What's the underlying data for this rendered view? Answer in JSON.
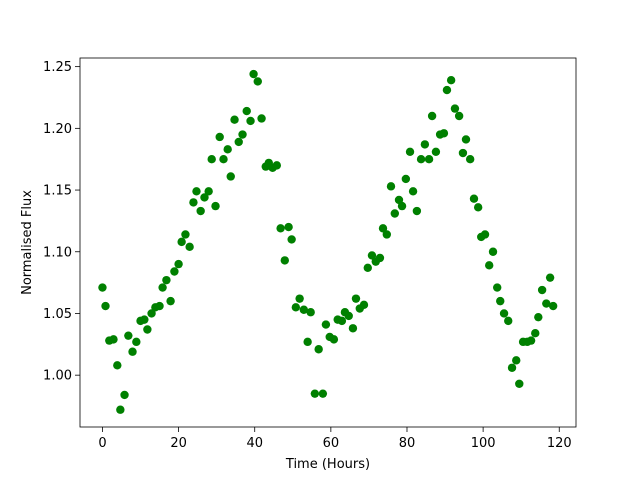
{
  "chart_data": {
    "type": "scatter",
    "x_label": "Time (Hours)",
    "y_label": "Normalised Flux",
    "color": "#008000",
    "xlim": [
      -5.9,
      124.4
    ],
    "ylim": [
      0.958,
      1.257
    ],
    "xticks": [
      0,
      20,
      40,
      60,
      80,
      100,
      120
    ],
    "yticks": [
      {
        "value": 1.0,
        "label": "1.00"
      },
      {
        "value": 1.05,
        "label": "1.05"
      },
      {
        "value": 1.1,
        "label": "1.10"
      },
      {
        "value": 1.15,
        "label": "1.15"
      },
      {
        "value": 1.2,
        "label": "1.20"
      },
      {
        "value": 1.25,
        "label": "1.25"
      }
    ],
    "x": [
      0,
      0.8,
      1.8,
      2.9,
      3.9,
      4.7,
      5.8,
      6.8,
      7.9,
      8.9,
      10,
      11,
      11.8,
      12.9,
      13.9,
      15,
      15.8,
      16.8,
      17.9,
      18.9,
      20,
      20.8,
      21.8,
      22.9,
      23.9,
      24.7,
      25.8,
      26.8,
      27.9,
      28.7,
      29.7,
      30.8,
      31.8,
      32.9,
      33.7,
      34.7,
      35.8,
      36.8,
      37.9,
      38.9,
      39.7,
      40.8,
      41.8,
      42.9,
      43.7,
      44.7,
      45.8,
      46.8,
      47.9,
      48.9,
      49.7,
      50.8,
      51.8,
      52.9,
      53.9,
      54.7,
      55.8,
      56.8,
      57.9,
      58.7,
      59.7,
      60.8,
      61.8,
      62.9,
      63.7,
      64.7,
      65.8,
      66.6,
      67.6,
      68.7,
      69.7,
      70.8,
      71.8,
      72.9,
      73.7,
      74.7,
      75.8,
      76.8,
      77.9,
      78.7,
      79.7,
      80.8,
      81.6,
      82.6,
      83.7,
      84.7,
      85.8,
      86.6,
      87.6,
      88.7,
      89.7,
      90.5,
      91.6,
      92.6,
      93.7,
      94.7,
      95.5,
      96.6,
      97.6,
      98.7,
      99.5,
      100.5,
      101.6,
      102.6,
      103.7,
      104.5,
      105.5,
      106.6,
      107.6,
      108.7,
      109.5,
      110.5,
      111.6,
      112.6,
      113.7,
      114.5,
      115.5,
      116.6,
      117.6,
      118.4
    ],
    "values": [
      1.071,
      1.056,
      1.028,
      1.029,
      1.008,
      0.972,
      0.984,
      1.032,
      1.019,
      1.027,
      1.044,
      1.045,
      1.037,
      1.05,
      1.055,
      1.056,
      1.071,
      1.077,
      1.06,
      1.084,
      1.09,
      1.108,
      1.114,
      1.104,
      1.14,
      1.149,
      1.133,
      1.144,
      1.149,
      1.175,
      1.137,
      1.193,
      1.175,
      1.183,
      1.161,
      1.207,
      1.189,
      1.195,
      1.214,
      1.206,
      1.244,
      1.238,
      1.208,
      1.169,
      1.172,
      1.168,
      1.17,
      1.119,
      1.093,
      1.12,
      1.11,
      1.055,
      1.062,
      1.053,
      1.027,
      1.051,
      0.985,
      1.021,
      0.985,
      1.041,
      1.031,
      1.029,
      1.045,
      1.044,
      1.051,
      1.048,
      1.038,
      1.062,
      1.054,
      1.057,
      1.087,
      1.097,
      1.092,
      1.095,
      1.119,
      1.114,
      1.153,
      1.131,
      1.142,
      1.137,
      1.159,
      1.181,
      1.149,
      1.133,
      1.175,
      1.187,
      1.175,
      1.21,
      1.181,
      1.195,
      1.196,
      1.231,
      1.239,
      1.216,
      1.21,
      1.18,
      1.191,
      1.175,
      1.143,
      1.136,
      1.112,
      1.114,
      1.089,
      1.1,
      1.071,
      1.06,
      1.05,
      1.044,
      1.006,
      1.012,
      0.993,
      1.027,
      1.027,
      1.028,
      1.034,
      1.047,
      1.069,
      1.058,
      1.079,
      1.056
    ]
  }
}
